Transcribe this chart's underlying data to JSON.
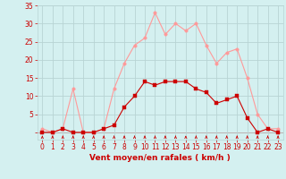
{
  "x": [
    0,
    1,
    2,
    3,
    4,
    5,
    6,
    7,
    8,
    9,
    10,
    11,
    12,
    13,
    14,
    15,
    16,
    17,
    18,
    19,
    20,
    21,
    22,
    23
  ],
  "y_mean": [
    0,
    0,
    1,
    0,
    0,
    0,
    1,
    2,
    7,
    10,
    14,
    13,
    14,
    14,
    14,
    12,
    11,
    8,
    9,
    10,
    4,
    0,
    1,
    0
  ],
  "y_gust": [
    1,
    0,
    1,
    12,
    0,
    0,
    1,
    12,
    19,
    24,
    26,
    33,
    27,
    30,
    28,
    30,
    24,
    19,
    22,
    23,
    15,
    5,
    1,
    1
  ],
  "background": "#d4f0f0",
  "grid_color": "#b8d4d4",
  "line_mean_color": "#cc0000",
  "line_gust_color": "#ff9999",
  "marker_size": 2.5,
  "xlabel": "Vent moyen/en rafales ( km/h )",
  "xlim": [
    -0.5,
    23.5
  ],
  "ylim": [
    -2,
    35
  ],
  "yticks": [
    0,
    5,
    10,
    15,
    20,
    25,
    30,
    35
  ],
  "xticks": [
    0,
    1,
    2,
    3,
    4,
    5,
    6,
    7,
    8,
    9,
    10,
    11,
    12,
    13,
    14,
    15,
    16,
    17,
    18,
    19,
    20,
    21,
    22,
    23
  ],
  "tick_color": "#cc0000",
  "label_fontsize": 6.5,
  "tick_fontsize": 5.5
}
